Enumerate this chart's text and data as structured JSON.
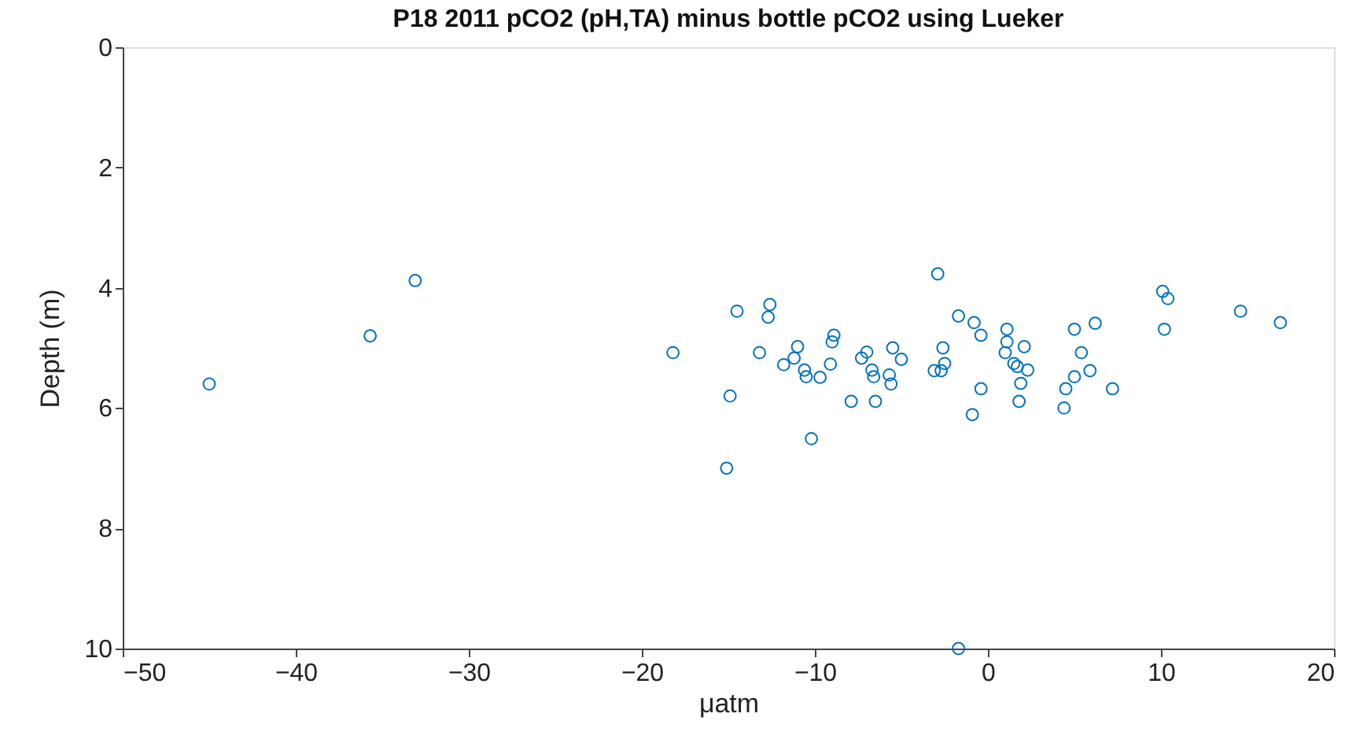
{
  "chart_data": {
    "type": "scatter",
    "title": "P18 2011 pCO2 (pH,TA) minus bottle pCO2 using Lueker",
    "xlabel": "μatm",
    "ylabel": "Depth (m)",
    "xlim": [
      -50,
      20
    ],
    "xticks": [
      -50,
      -40,
      -30,
      -20,
      -10,
      0,
      10,
      20
    ],
    "ylim": [
      10,
      0
    ],
    "yticks": [
      0,
      2,
      4,
      6,
      8,
      10
    ],
    "grid": false,
    "marker": "circle",
    "series": [
      {
        "color": "#0072bd",
        "x": [
          -45.0,
          -35.7,
          -33.1,
          -18.2,
          -14.5,
          -12.6,
          -12.7,
          -2.9,
          -1.7,
          -0.8,
          -0.4,
          1.1,
          1.1,
          2.1,
          1.0,
          1.5,
          1.7,
          2.3,
          1.9,
          1.8,
          5.0,
          6.2,
          5.4,
          5.9,
          5.0,
          4.5,
          4.4,
          7.2,
          10.1,
          10.4,
          10.2,
          14.6,
          16.9,
          -13.2,
          -14.9,
          -15.1,
          -10.2,
          -11.0,
          -11.2,
          -11.8,
          -10.6,
          -10.5,
          -9.7,
          -9.1,
          -8.9,
          -9.0,
          -7.9,
          -7.3,
          -7.0,
          -6.7,
          -6.6,
          -6.5,
          -5.5,
          -5.0,
          -5.7,
          -5.6,
          -2.6,
          -2.5,
          -2.7,
          -3.1,
          -0.4,
          -0.9,
          -1.7
        ],
        "values": [
          5.6,
          4.8,
          3.88,
          5.08,
          4.39,
          4.28,
          4.49,
          3.77,
          4.47,
          4.58,
          4.79,
          4.69,
          4.9,
          4.98,
          5.08,
          5.26,
          5.31,
          5.37,
          5.59,
          5.89,
          4.69,
          4.59,
          5.08,
          5.38,
          5.48,
          5.68,
          6.0,
          5.68,
          4.06,
          4.18,
          4.69,
          4.39,
          4.58,
          5.08,
          5.8,
          7.0,
          6.51,
          4.98,
          5.17,
          5.28,
          5.37,
          5.48,
          5.49,
          5.27,
          4.79,
          4.9,
          5.89,
          5.17,
          5.07,
          5.37,
          5.48,
          5.89,
          5.0,
          5.19,
          5.45,
          5.6,
          5.0,
          5.26,
          5.38,
          5.38,
          5.68,
          6.11,
          10.0
        ]
      }
    ]
  }
}
